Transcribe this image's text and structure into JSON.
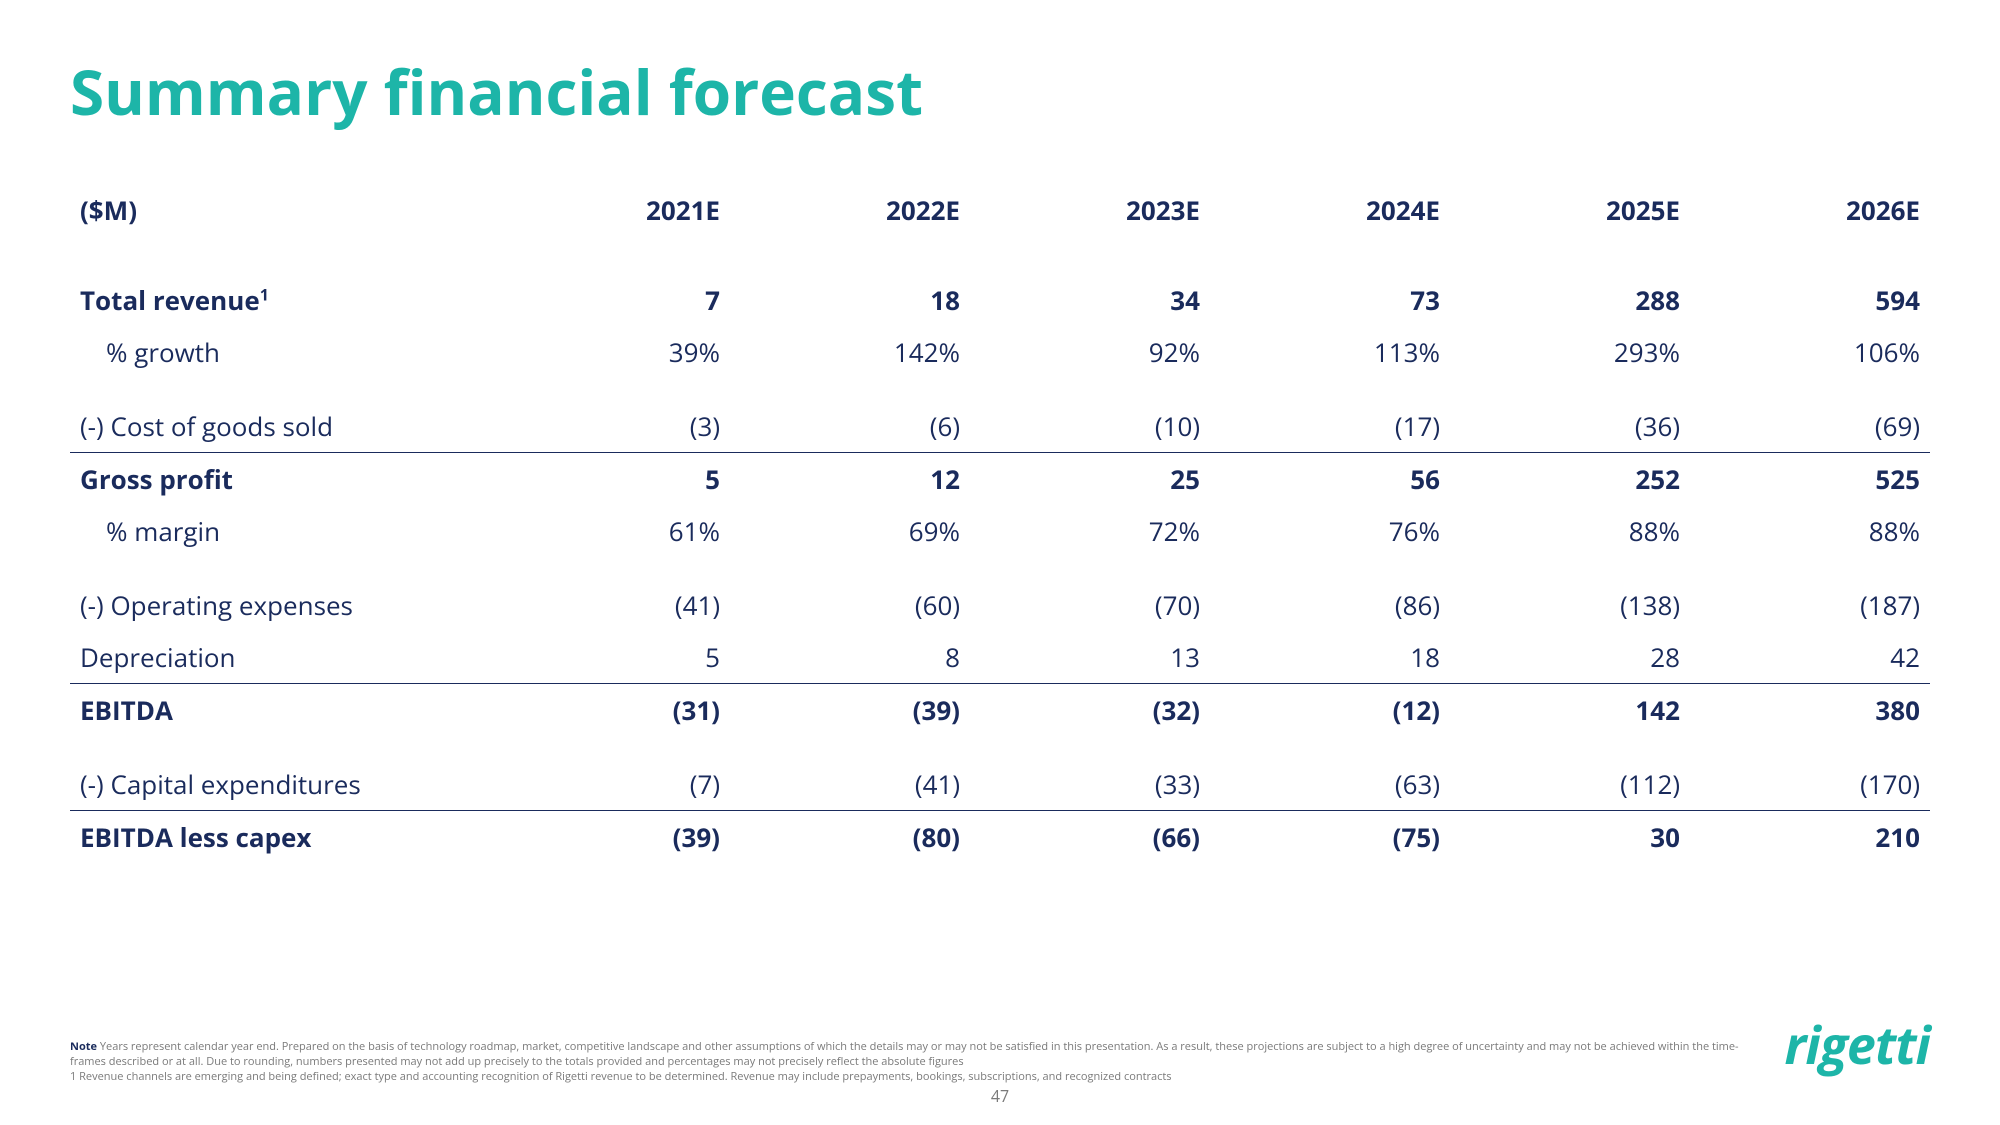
{
  "title": "Summary financial forecast",
  "units_label": "($M)",
  "years": [
    "2021E",
    "2022E",
    "2023E",
    "2024E",
    "2025E",
    "2026E"
  ],
  "rows": {
    "total_revenue": {
      "label": "Total revenue",
      "sup": "1",
      "v": [
        "7",
        "18",
        "34",
        "73",
        "288",
        "594"
      ]
    },
    "growth": {
      "label": "% growth",
      "v": [
        "39%",
        "142%",
        "92%",
        "113%",
        "293%",
        "106%"
      ]
    },
    "cogs": {
      "label": "(-) Cost of goods sold",
      "v": [
        "(3)",
        "(6)",
        "(10)",
        "(17)",
        "(36)",
        "(69)"
      ]
    },
    "gross_profit": {
      "label": "Gross profit",
      "v": [
        "5",
        "12",
        "25",
        "56",
        "252",
        "525"
      ]
    },
    "margin": {
      "label": "% margin",
      "v": [
        "61%",
        "69%",
        "72%",
        "76%",
        "88%",
        "88%"
      ]
    },
    "opex": {
      "label": "(-) Operating expenses",
      "v": [
        "(41)",
        "(60)",
        "(70)",
        "(86)",
        "(138)",
        "(187)"
      ]
    },
    "depreciation": {
      "label": "Depreciation",
      "v": [
        "5",
        "8",
        "13",
        "18",
        "28",
        "42"
      ]
    },
    "ebitda": {
      "label": "EBITDA",
      "v": [
        "(31)",
        "(39)",
        "(32)",
        "(12)",
        "142",
        "380"
      ]
    },
    "capex": {
      "label": "(-) Capital expenditures",
      "v": [
        "(7)",
        "(41)",
        "(33)",
        "(63)",
        "(112)",
        "(170)"
      ]
    },
    "ebitda_less": {
      "label": "EBITDA less capex",
      "v": [
        "(39)",
        "(80)",
        "(66)",
        "(75)",
        "30",
        "210"
      ]
    }
  },
  "footnote": {
    "label": "Note",
    "line1": " Years represent calendar year end. Prepared on the basis of technology roadmap, market, competitive landscape and other assumptions of which the details may or may not be satisfied in this presentation. As a result, these projections are subject to a high degree of uncertainty and may not be achieved within the time-frames described or at all. Due to rounding, numbers presented may not add up precisely to the totals provided and percentages may not precisely reflect the absolute figures",
    "line2": "1 Revenue channels are emerging and being defined; exact type and accounting recognition of Rigetti revenue to be determined. Revenue may include prepayments, bookings, subscriptions, and recognized contracts"
  },
  "page_number": "47",
  "logo_text": "rigetti",
  "colors": {
    "title": "#1db5a8",
    "text": "#1a2b5c",
    "muted": "#7a7a7a",
    "background": "#ffffff"
  }
}
